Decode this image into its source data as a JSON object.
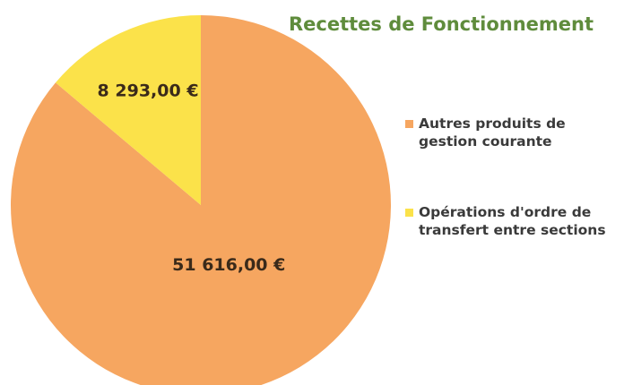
{
  "chart_data": {
    "type": "pie",
    "title": "Recettes de Fonctionnement",
    "categories": [
      "Autres produits de gestion courante",
      "Opérations d'ordre de transfert entre sections"
    ],
    "values": [
      51616,
      8293
    ],
    "value_labels": [
      "51 616,00 €",
      "8 293,00 €"
    ],
    "colors": [
      "#f6a660",
      "#fbe24a"
    ],
    "legend": "right"
  }
}
